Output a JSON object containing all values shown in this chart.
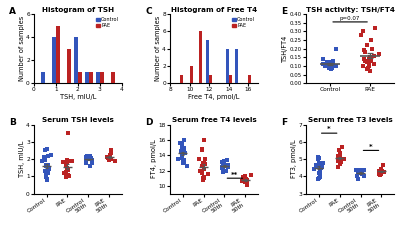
{
  "panel_A_title": "Histogram of TSH",
  "panel_A_xlabel": "TSH, mIU/L",
  "panel_A_ylabel": "Number of samples",
  "panel_A_xlim": [
    0,
    4
  ],
  "panel_A_ylim": [
    0,
    6
  ],
  "panel_C_title": "Histogram of Free T4",
  "panel_C_xlabel": "Free T4, pmol/L",
  "panel_C_ylabel": "Number of samples",
  "panel_C_xlim": [
    8,
    17
  ],
  "panel_C_ylim": [
    0,
    8
  ],
  "panel_E_title": "TSH activity: TSH/FT4",
  "panel_E_ylabel": "TSH/FT4",
  "panel_E_ylim": [
    0.0,
    0.4
  ],
  "panel_E_pvalue": "p=0.07",
  "panel_B_title": "Serum TSH levels",
  "panel_B_ylabel": "TSH, mIU/L",
  "panel_B_ylim": [
    0,
    4
  ],
  "panel_D_title": "Serum free T4 levels",
  "panel_D_ylabel": "FT4, pmol/L",
  "panel_D_ylim": [
    9,
    18
  ],
  "panel_F_title": "Serum free T3 levels",
  "panel_F_ylabel": "FT3, pmol/L",
  "panel_F_ylim": [
    3,
    7
  ],
  "categories_4": [
    "Control",
    "PAE",
    "Control 50th",
    "PAE 50th"
  ],
  "color_blue": "#3355bb",
  "color_red": "#bb2222",
  "label_fontsize": 4.8,
  "title_fontsize": 5.2,
  "tick_fontsize": 4.2,
  "panel_label_fontsize": 6.5,
  "axis_label_color": "#333333"
}
